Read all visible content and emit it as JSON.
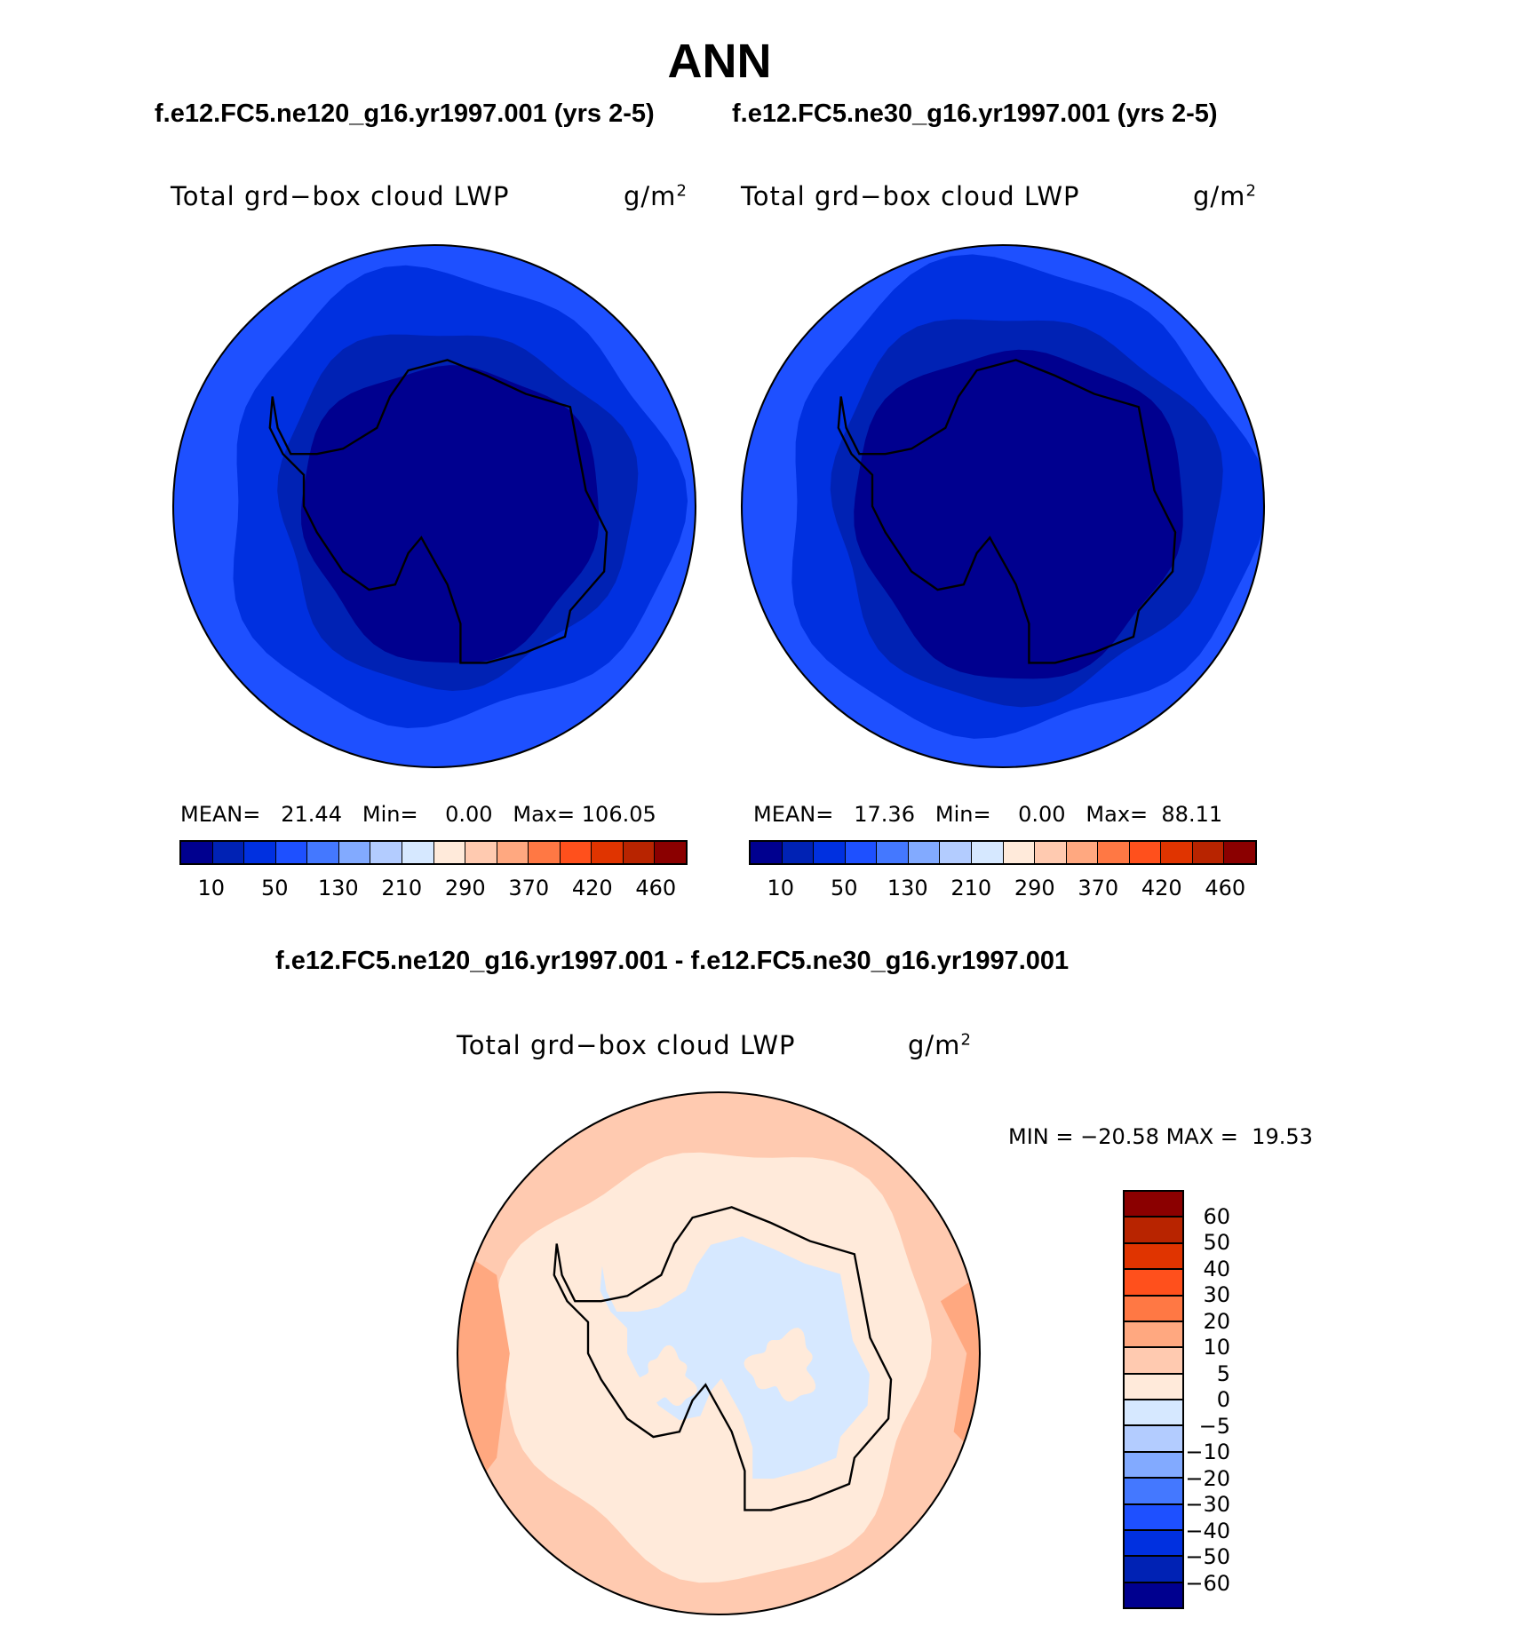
{
  "header": {
    "title": "ANN",
    "left_case": "f.e12.FC5.ne120_g16.yr1997.001 (yrs 2-5)",
    "right_case": "f.e12.FC5.ne30_g16.yr1997.001 (yrs 2-5)",
    "diff_title": "f.e12.FC5.ne120_g16.yr1997.001 - f.e12.FC5.ne30_g16.yr1997.001"
  },
  "chart_data": [
    {
      "type": "heatmap",
      "projection": "south-polar stereographic",
      "variable": "Total grd−box cloud LWP",
      "units": "g/m",
      "units_exp": "2",
      "stats": {
        "mean_label": "MEAN=",
        "mean": "21.44",
        "min_label": "Min=",
        "min": "0.00",
        "max_label": "Max=",
        "max": "106.05"
      },
      "colorbar": {
        "levels": [
          10,
          50,
          130,
          210,
          290,
          370,
          420,
          460
        ],
        "tick_labels": [
          "10",
          "50",
          "130",
          "210",
          "290",
          "370",
          "420",
          "460"
        ],
        "colors": [
          "#00008f",
          "#0022b4",
          "#0030e0",
          "#1e50ff",
          "#4478ff",
          "#82aaff",
          "#b3ccff",
          "#d6e8ff",
          "#ffeada",
          "#ffcab0",
          "#ffa880",
          "#ff7844",
          "#ff501c",
          "#e03400",
          "#b82400",
          "#8b0000"
        ]
      }
    },
    {
      "type": "heatmap",
      "projection": "south-polar stereographic",
      "variable": "Total grd−box cloud LWP",
      "units": "g/m",
      "units_exp": "2",
      "stats": {
        "mean_label": "MEAN=",
        "mean": "17.36",
        "min_label": "Min=",
        "min": "0.00",
        "max_label": "Max=",
        "max": "88.11"
      },
      "colorbar": {
        "levels": [
          10,
          50,
          130,
          210,
          290,
          370,
          420,
          460
        ],
        "tick_labels": [
          "10",
          "50",
          "130",
          "210",
          "290",
          "370",
          "420",
          "460"
        ],
        "colors": [
          "#00008f",
          "#0022b4",
          "#0030e0",
          "#1e50ff",
          "#4478ff",
          "#82aaff",
          "#b3ccff",
          "#d6e8ff",
          "#ffeada",
          "#ffcab0",
          "#ffa880",
          "#ff7844",
          "#ff501c",
          "#e03400",
          "#b82400",
          "#8b0000"
        ]
      }
    },
    {
      "type": "heatmap",
      "projection": "south-polar stereographic",
      "variable": "Total grd−box cloud LWP",
      "units": "g/m",
      "units_exp": "2",
      "stats": {
        "min_label": "MIN =",
        "min": "−20.58",
        "max_label": "MAX =",
        "max": "19.53"
      },
      "colorbar": {
        "levels": [
          60,
          50,
          40,
          30,
          20,
          10,
          5,
          0,
          -5,
          -10,
          -20,
          -30,
          -40,
          -50,
          -60
        ],
        "tick_labels": [
          "60",
          "50",
          "40",
          "30",
          "20",
          "10",
          "5",
          "0",
          "−5",
          "−10",
          "−20",
          "−30",
          "−40",
          "−50",
          "−60"
        ],
        "colors": [
          "#8b0000",
          "#b82400",
          "#e03400",
          "#ff501c",
          "#ff7844",
          "#ffa880",
          "#ffcab0",
          "#ffeada",
          "#d6e8ff",
          "#b3ccff",
          "#82aaff",
          "#4478ff",
          "#1e50ff",
          "#0030e0",
          "#0022b4",
          "#00008f"
        ]
      }
    }
  ]
}
